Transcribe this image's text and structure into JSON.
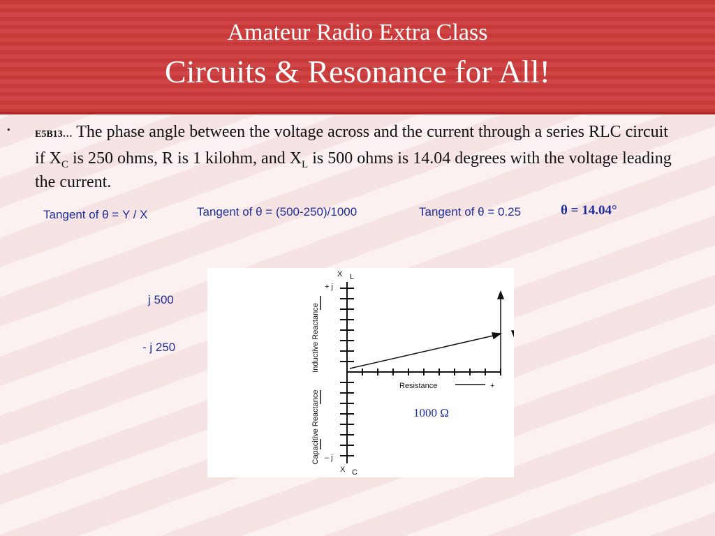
{
  "header": {
    "line1": "Amateur Radio Extra Class",
    "line2": "Circuits & Resonance for All!"
  },
  "bullet": {
    "marker": "•",
    "id": "E5B13…",
    "text": [
      "The phase angle between the voltage across and the current through a series RLC circuit if X",
      "C",
      " is 250 ohms, R is 1 kilohm, and X",
      "L",
      " is 500 ohms is 14.04 degrees with the voltage leading the current."
    ]
  },
  "formulas": [
    "Tangent of θ = Y / X",
    "Tangent of θ = (500-250)/1000",
    "Tangent of θ = 0.25",
    "θ = 14.04°"
  ],
  "labels": {
    "xl": "j 500",
    "xc": "- j 250",
    "r": "1000 Ω"
  },
  "diagram": {
    "top_axis": "X",
    "top_sub": "L",
    "plus_j": "+ j",
    "inductive": "Inductive Reactance",
    "capacitive": "Capacitive Reactance",
    "resistance": "Resistance",
    "plus": "+",
    "minus_j": "– j",
    "bottom_axis": "X",
    "bottom_sub": "C"
  }
}
